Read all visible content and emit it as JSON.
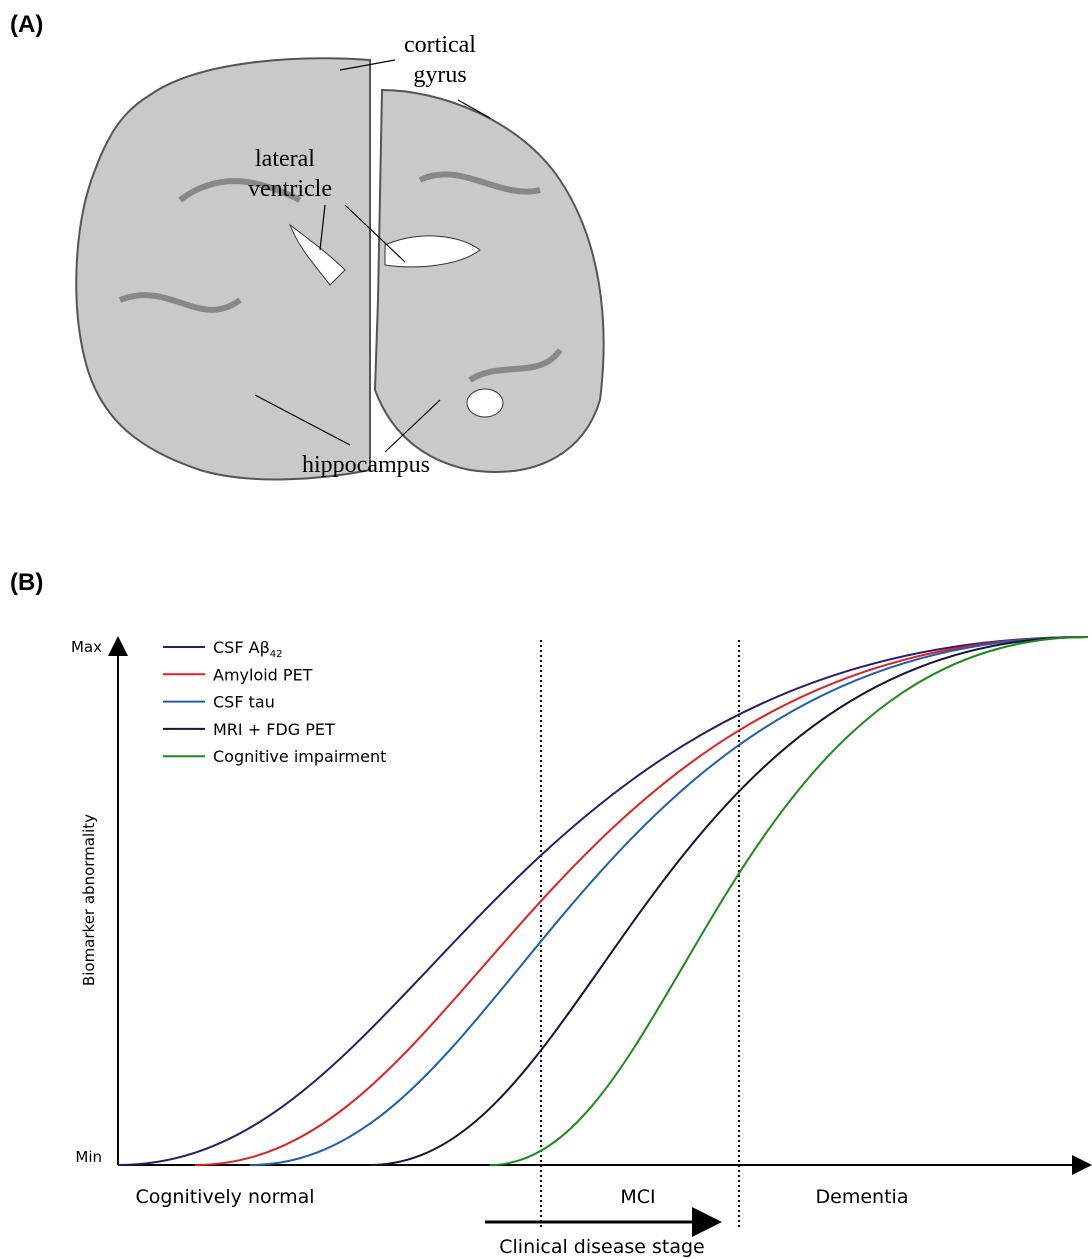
{
  "panel_a": {
    "label": "(A)",
    "annotations": {
      "cortical_gyrus": [
        "cortical",
        "gyrus"
      ],
      "lateral_ventricle": [
        "lateral",
        "ventricle"
      ],
      "hippocampus": "hippocampus"
    }
  },
  "panel_b": {
    "label": "(B)",
    "y_axis": {
      "title": "Biomarker abnormality",
      "max": "Max",
      "min": "Min"
    },
    "legend": [
      {
        "name": "CSF Aβ",
        "subscript": "42",
        "color": "#2b1b6e"
      },
      {
        "name": "Amyloid PET",
        "color": "#e0201e"
      },
      {
        "name": "CSF tau",
        "color": "#1f5fb0"
      },
      {
        "name": "MRI + FDG PET",
        "color": "#14143c"
      },
      {
        "name": "Cognitive impairment",
        "color": "#1b8a1b"
      }
    ],
    "stages": [
      "Cognitively normal",
      "MCI",
      "Dementia"
    ],
    "x_axis_title": "Clinical disease stage"
  }
}
